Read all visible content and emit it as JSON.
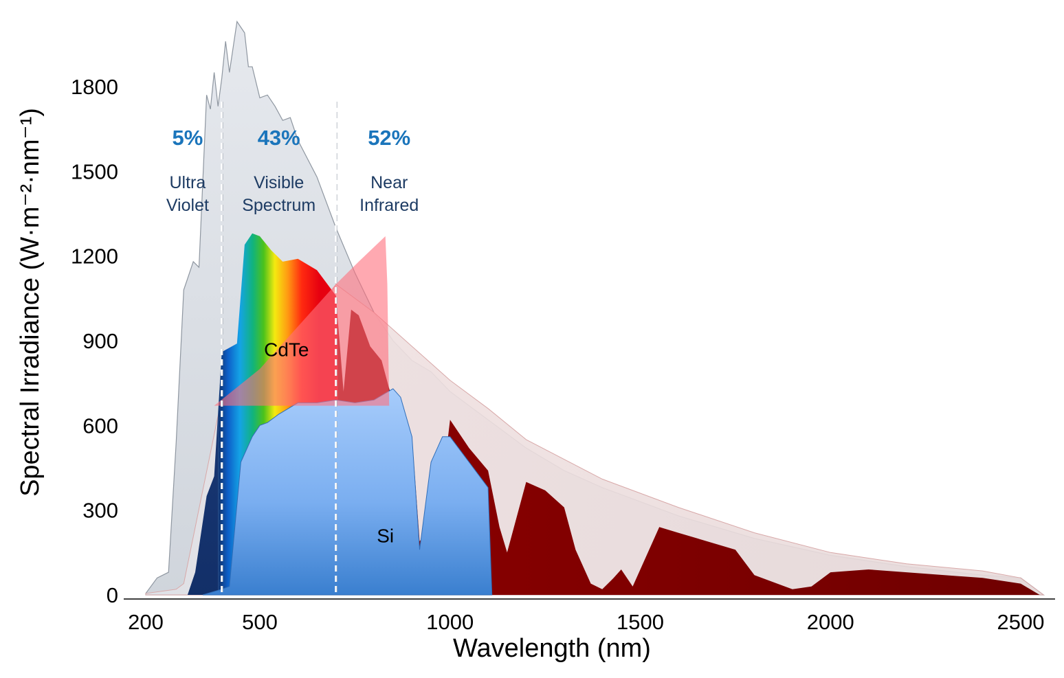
{
  "chart_data": {
    "type": "area",
    "xlabel": "Wavelength (nm)",
    "ylabel": "Spectral Irradiance (W·m⁻²·nm⁻¹)",
    "xlim": [
      200,
      2600
    ],
    "ylim": [
      0,
      2000
    ],
    "x_ticks": [
      200,
      500,
      1000,
      1500,
      2000,
      2500
    ],
    "y_ticks": [
      0,
      300,
      600,
      900,
      1200,
      1500,
      1800
    ],
    "grid": false,
    "region_boundaries": [
      400,
      700
    ],
    "regions": [
      {
        "percent": "5%",
        "line1": "Ultra",
        "line2": "Violet",
        "x_center": 310
      },
      {
        "percent": "43%",
        "line1": "Visible",
        "line2": "Spectrum",
        "x_center": 550
      },
      {
        "percent": "52%",
        "line1": "Near",
        "line2": "Infrared",
        "x_center": 840
      }
    ],
    "materials": [
      {
        "label": "CdTe",
        "x": 570,
        "y": 870
      },
      {
        "label": "Si",
        "x": 830,
        "y": 210
      }
    ],
    "colors": {
      "extraterrestrial": "#d9dde3",
      "surface_total": "#e6d4d4",
      "absorbed": "#7a0000",
      "si_top": "#9ec7fb",
      "si_bottom": "#3a82d0",
      "cdte": "#ff6f7d",
      "uv_blue": "#1d3f86",
      "percent_text": "#1b75bb"
    },
    "series": [
      {
        "name": "",
        "x": [
          200,
          230,
          260,
          280,
          300,
          310,
          325,
          340,
          360,
          370,
          380,
          390,
          400,
          410,
          420,
          440,
          460,
          470,
          480,
          500,
          520,
          540,
          560,
          580,
          600,
          650,
          700,
          750,
          800,
          850,
          900,
          950,
          1000,
          1100,
          1200,
          1300,
          1400,
          1500,
          1600,
          1800,
          2000,
          2200,
          2400,
          2500,
          2560
        ],
        "values": [
          5,
          60,
          80,
          540,
          1080,
          1120,
          1180,
          1160,
          1770,
          1720,
          1850,
          1730,
          1830,
          1960,
          1850,
          2030,
          1990,
          1870,
          1870,
          1760,
          1770,
          1730,
          1680,
          1690,
          1610,
          1480,
          1300,
          1140,
          1000,
          900,
          830,
          790,
          720,
          620,
          520,
          440,
          380,
          330,
          280,
          200,
          140,
          100,
          70,
          60,
          0
        ]
      },
      {
        "name": "",
        "x": [
          200,
          280,
          300,
          400,
          500,
          600,
          700,
          800,
          900,
          950,
          1000,
          1100,
          1200,
          1400,
          1600,
          1800,
          2000,
          2200,
          2400,
          2500,
          2560
        ],
        "values": [
          5,
          20,
          40,
          700,
          800,
          860,
          1100,
          1000,
          880,
          820,
          760,
          660,
          550,
          410,
          310,
          220,
          150,
          110,
          85,
          60,
          0
        ]
      },
      {
        "name": "",
        "x": [
          310,
          330,
          360,
          380,
          400,
          440,
          460,
          480,
          500,
          530,
          560,
          600,
          650,
          700,
          720,
          740,
          760,
          790,
          820,
          850,
          880,
          900,
          920,
          940,
          960,
          1000,
          1050,
          1100,
          1130,
          1150,
          1200,
          1250,
          1300,
          1330,
          1370,
          1400,
          1430,
          1450,
          1480,
          1550,
          1600,
          1650,
          1750,
          1800,
          1900,
          1950,
          2000,
          2100,
          2300,
          2400,
          2500,
          2550
        ],
        "values": [
          0,
          80,
          350,
          420,
          860,
          890,
          1240,
          1280,
          1270,
          1220,
          1180,
          1190,
          1150,
          1060,
          720,
          1010,
          990,
          880,
          830,
          680,
          590,
          560,
          190,
          220,
          160,
          620,
          520,
          440,
          240,
          150,
          400,
          370,
          310,
          160,
          40,
          20,
          60,
          90,
          30,
          240,
          220,
          200,
          160,
          70,
          20,
          30,
          80,
          90,
          70,
          60,
          40,
          0
        ]
      },
      {
        "name": "",
        "x": [
          350,
          400,
          420,
          450,
          480,
          500,
          520,
          550,
          600,
          650,
          700,
          750,
          800,
          850,
          870,
          900,
          920,
          950,
          980,
          1000,
          1050,
          1100,
          1110
        ],
        "values": [
          0,
          20,
          30,
          470,
          560,
          600,
          610,
          640,
          680,
          680,
          690,
          680,
          690,
          730,
          700,
          560,
          160,
          470,
          560,
          560,
          470,
          380,
          0
        ]
      },
      {
        "name": "",
        "x": [
          380,
          500,
          600,
          700,
          760,
          830,
          835,
          840,
          380
        ],
        "values": [
          670,
          800,
          950,
          1100,
          1180,
          1270,
          1100,
          670,
          670
        ]
      }
    ]
  }
}
